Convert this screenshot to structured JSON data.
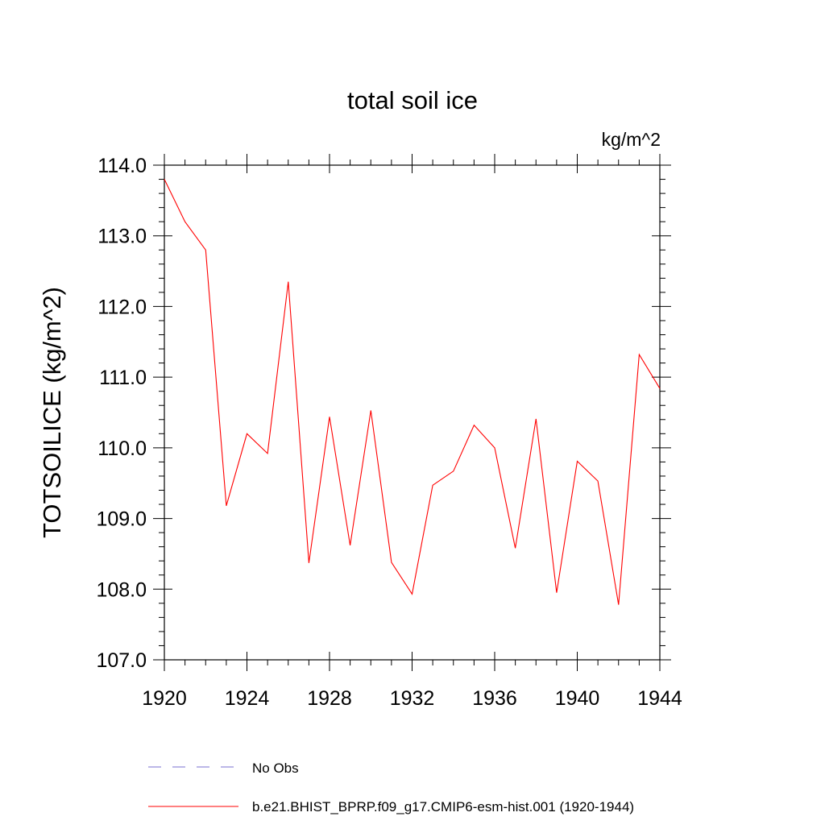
{
  "chart_data": {
    "type": "line",
    "title": "total soil ice",
    "units": "kg/m^2",
    "ylabel": "TOTSOILICE  (kg/m^2)",
    "xlabel": "",
    "xlim": [
      1920,
      1944
    ],
    "ylim": [
      107.0,
      114.0
    ],
    "x_ticks": [
      1920,
      1924,
      1928,
      1932,
      1936,
      1940,
      1944
    ],
    "y_ticks": [
      107.0,
      108.0,
      109.0,
      110.0,
      111.0,
      112.0,
      113.0,
      114.0
    ],
    "series": [
      {
        "name": "b.e21.BHIST_BPRP.f09_g17.CMIP6-esm-hist.001 (1920-1944)",
        "color": "#ff0000",
        "x": [
          1920,
          1921,
          1922,
          1923,
          1924,
          1925,
          1926,
          1927,
          1928,
          1929,
          1930,
          1931,
          1932,
          1933,
          1934,
          1935,
          1936,
          1937,
          1938,
          1939,
          1940,
          1941,
          1942,
          1943,
          1944
        ],
        "y": [
          113.8,
          113.2,
          112.8,
          109.18,
          110.2,
          109.92,
          112.35,
          108.37,
          110.44,
          108.62,
          110.53,
          108.38,
          107.93,
          109.47,
          109.67,
          110.32,
          110.0,
          108.58,
          110.41,
          107.95,
          109.81,
          109.53,
          107.78,
          111.32,
          110.84
        ]
      }
    ],
    "legend": {
      "placement": "bottom",
      "entries": [
        {
          "label": "No Obs",
          "style": "dashed",
          "color": "#7a6fd0"
        },
        {
          "label": "b.e21.BHIST_BPRP.f09_g17.CMIP6-esm-hist.001 (1920-1944)",
          "style": "solid",
          "color": "#ff0000"
        }
      ]
    }
  }
}
